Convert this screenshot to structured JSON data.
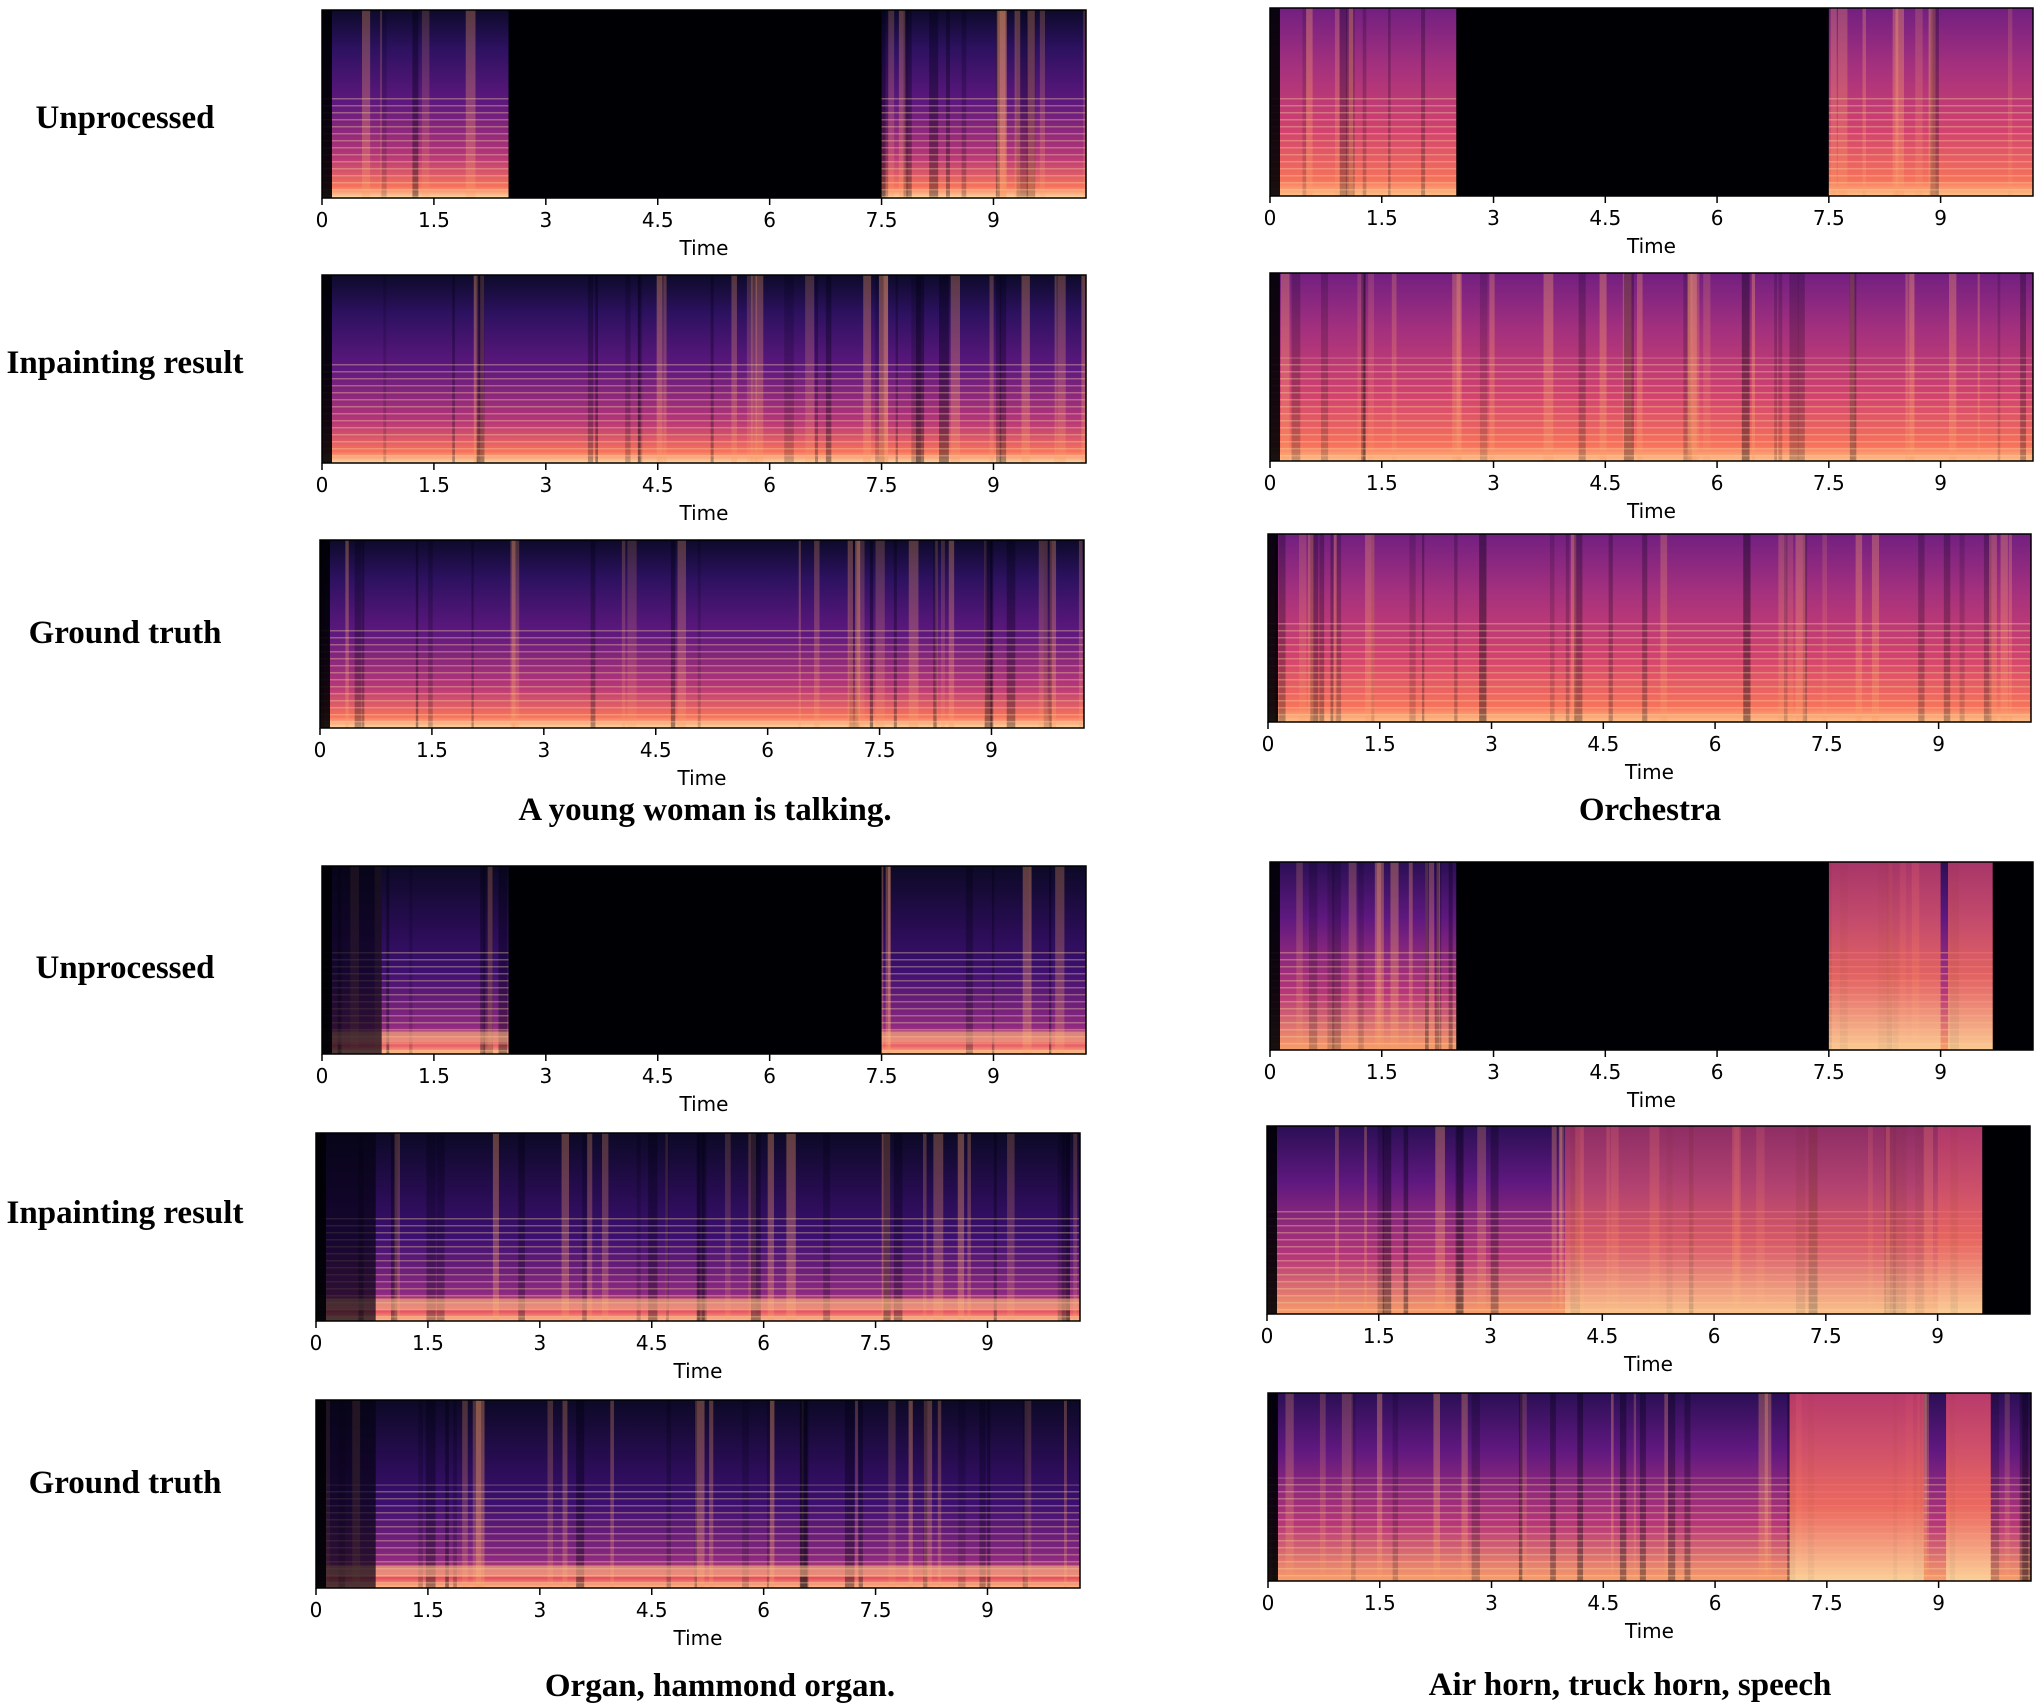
{
  "row_labels": [
    "Unprocessed",
    "Inpainting result",
    "Ground truth"
  ],
  "captions": [
    "A young woman is talking.",
    "Orchestra",
    "Organ, hammond organ.",
    "Air horn, truck horn, speech"
  ],
  "chart_data": [
    {
      "type": "heatmap",
      "group": "A young woman is talking.",
      "row": "Unprocessed",
      "xlabel": "Time",
      "xticks": [
        "0",
        "1.5",
        "3",
        "4.5",
        "6",
        "7.5",
        "9"
      ],
      "xlim": [
        0,
        10.24
      ],
      "masked_interval": [
        2.5,
        7.5
      ],
      "colormap": "magma"
    },
    {
      "type": "heatmap",
      "group": "A young woman is talking.",
      "row": "Inpainting result",
      "xlabel": "Time",
      "xticks": [
        "0",
        "1.5",
        "3",
        "4.5",
        "6",
        "7.5",
        "9"
      ],
      "xlim": [
        0,
        10.24
      ],
      "colormap": "magma"
    },
    {
      "type": "heatmap",
      "group": "A young woman is talking.",
      "row": "Ground truth",
      "xlabel": "Time",
      "xticks": [
        "0",
        "1.5",
        "3",
        "4.5",
        "6",
        "7.5",
        "9"
      ],
      "xlim": [
        0,
        10.24
      ],
      "colormap": "magma"
    },
    {
      "type": "heatmap",
      "group": "Orchestra",
      "row": "Unprocessed",
      "xlabel": "Time",
      "xticks": [
        "0",
        "1.5",
        "3",
        "4.5",
        "6",
        "7.5",
        "9"
      ],
      "xlim": [
        0,
        10.24
      ],
      "masked_interval": [
        2.5,
        7.5
      ],
      "colormap": "magma"
    },
    {
      "type": "heatmap",
      "group": "Orchestra",
      "row": "Inpainting result",
      "xlabel": "Time",
      "xticks": [
        "0",
        "1.5",
        "3",
        "4.5",
        "6",
        "7.5",
        "9"
      ],
      "xlim": [
        0,
        10.24
      ],
      "colormap": "magma"
    },
    {
      "type": "heatmap",
      "group": "Orchestra",
      "row": "Ground truth",
      "xlabel": "Time",
      "xticks": [
        "0",
        "1.5",
        "3",
        "4.5",
        "6",
        "7.5",
        "9"
      ],
      "xlim": [
        0,
        10.24
      ],
      "colormap": "magma"
    },
    {
      "type": "heatmap",
      "group": "Organ, hammond organ.",
      "row": "Unprocessed",
      "xlabel": "Time",
      "xticks": [
        "0",
        "1.5",
        "3",
        "4.5",
        "6",
        "7.5",
        "9"
      ],
      "xlim": [
        0,
        10.24
      ],
      "masked_interval": [
        2.5,
        7.5
      ],
      "colormap": "magma"
    },
    {
      "type": "heatmap",
      "group": "Organ, hammond organ.",
      "row": "Inpainting result",
      "xlabel": "Time",
      "xticks": [
        "0",
        "1.5",
        "3",
        "4.5",
        "6",
        "7.5",
        "9"
      ],
      "xlim": [
        0,
        10.24
      ],
      "colormap": "magma"
    },
    {
      "type": "heatmap",
      "group": "Organ, hammond organ.",
      "row": "Ground truth",
      "xlabel": "Time",
      "xticks": [
        "0",
        "1.5",
        "3",
        "4.5",
        "6",
        "7.5",
        "9"
      ],
      "xlim": [
        0,
        10.24
      ],
      "colormap": "magma"
    },
    {
      "type": "heatmap",
      "group": "Air horn, truck horn, speech",
      "row": "Unprocessed",
      "xlabel": "Time",
      "xticks": [
        "0",
        "1.5",
        "3",
        "4.5",
        "6",
        "7.5",
        "9"
      ],
      "xlim": [
        0,
        10.24
      ],
      "masked_interval": [
        2.5,
        7.5
      ],
      "colormap": "magma"
    },
    {
      "type": "heatmap",
      "group": "Air horn, truck horn, speech",
      "row": "Inpainting result",
      "xlabel": "Time",
      "xticks": [
        "0",
        "1.5",
        "3",
        "4.5",
        "6",
        "7.5",
        "9"
      ],
      "xlim": [
        0,
        10.24
      ],
      "colormap": "magma"
    },
    {
      "type": "heatmap",
      "group": "Air horn, truck horn, speech",
      "row": "Ground truth",
      "xlabel": "Time",
      "xticks": [
        "0",
        "1.5",
        "3",
        "4.5",
        "6",
        "7.5",
        "9"
      ],
      "xlim": [
        0,
        10.24
      ],
      "colormap": "magma"
    }
  ]
}
